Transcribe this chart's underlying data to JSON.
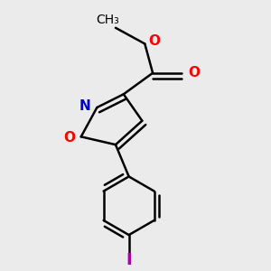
{
  "background_color": "#ebebeb",
  "bond_color": "#000000",
  "bond_width": 1.8,
  "atom_colors": {
    "N": "#0000cc",
    "O": "#ff0000",
    "I": "#aa00aa"
  },
  "font_size_atoms": 11,
  "font_size_methyl": 10
}
